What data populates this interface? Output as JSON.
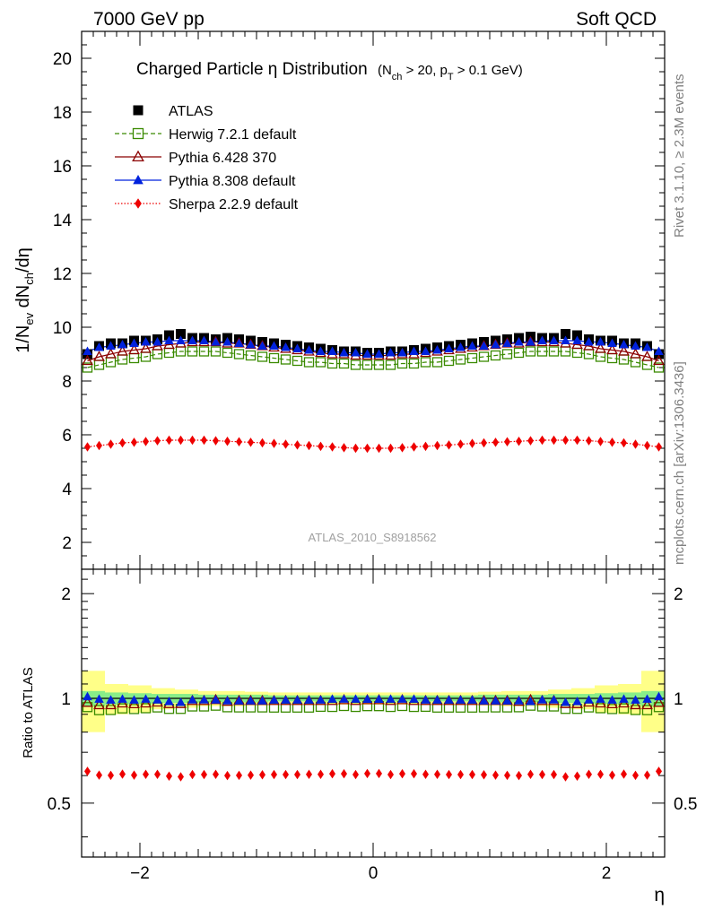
{
  "header": {
    "left": "7000 GeV pp",
    "right": "Soft QCD"
  },
  "side_labels": {
    "rivet": "Rivet 3.1.10, ≥ 2.3M events",
    "mcplots": "mcplots.cern.ch [arXiv:1306.3436]"
  },
  "analysis_id": "ATLAS_2010_S8918562",
  "chart_data": [
    {
      "type": "scatter",
      "panel": "main",
      "title": "Charged Particle η Distribution",
      "title_suffix_a": "(N",
      "title_suffix_sub1": "ch",
      "title_suffix_b": " > 20, p",
      "title_suffix_sub2": "T",
      "title_suffix_c": " > 0.1 GeV)",
      "ylabel": "1/N_ev dN_ch/dη",
      "xlabel": "η",
      "xlim": [
        -2.5,
        2.5
      ],
      "ylim": [
        1,
        21
      ],
      "yticks": [
        2,
        4,
        6,
        8,
        10,
        12,
        14,
        16,
        18,
        20
      ],
      "xticks": [
        -2,
        0,
        2
      ],
      "legend_position": "top-left",
      "x": [
        -2.45,
        -2.35,
        -2.25,
        -2.15,
        -2.05,
        -1.95,
        -1.85,
        -1.75,
        -1.65,
        -1.55,
        -1.45,
        -1.35,
        -1.25,
        -1.15,
        -1.05,
        -0.95,
        -0.85,
        -0.75,
        -0.65,
        -0.55,
        -0.45,
        -0.35,
        -0.25,
        -0.15,
        -0.05,
        0.05,
        0.15,
        0.25,
        0.35,
        0.45,
        0.55,
        0.65,
        0.75,
        0.85,
        0.95,
        1.05,
        1.15,
        1.25,
        1.35,
        1.45,
        1.55,
        1.65,
        1.75,
        1.85,
        1.95,
        2.05,
        2.15,
        2.25,
        2.35,
        2.45
      ],
      "series": [
        {
          "name": "ATLAS",
          "color": "#000000",
          "marker": "filled-square",
          "values": [
            9.0,
            9.3,
            9.4,
            9.4,
            9.5,
            9.5,
            9.55,
            9.7,
            9.75,
            9.6,
            9.6,
            9.55,
            9.6,
            9.55,
            9.5,
            9.45,
            9.4,
            9.35,
            9.3,
            9.25,
            9.2,
            9.15,
            9.1,
            9.1,
            9.05,
            9.05,
            9.1,
            9.1,
            9.15,
            9.2,
            9.25,
            9.3,
            9.35,
            9.4,
            9.45,
            9.5,
            9.55,
            9.6,
            9.65,
            9.6,
            9.6,
            9.75,
            9.7,
            9.55,
            9.5,
            9.5,
            9.4,
            9.4,
            9.3,
            9.0
          ]
        },
        {
          "name": "Herwig 7.2.1 default",
          "color": "#3a8a00",
          "marker": "open-square",
          "line": "dashed",
          "values": [
            8.5,
            8.6,
            8.7,
            8.8,
            8.85,
            8.9,
            9.0,
            9.05,
            9.1,
            9.1,
            9.1,
            9.1,
            9.05,
            9.0,
            8.95,
            8.9,
            8.85,
            8.8,
            8.75,
            8.7,
            8.7,
            8.65,
            8.65,
            8.6,
            8.6,
            8.6,
            8.6,
            8.65,
            8.65,
            8.7,
            8.7,
            8.75,
            8.8,
            8.85,
            8.9,
            8.95,
            9.0,
            9.05,
            9.1,
            9.1,
            9.1,
            9.1,
            9.05,
            9.0,
            8.9,
            8.85,
            8.8,
            8.7,
            8.6,
            8.5
          ]
        },
        {
          "name": "Pythia 6.428 370",
          "color": "#8b0000",
          "marker": "open-triangle",
          "line": "solid",
          "values": [
            8.75,
            8.9,
            9.0,
            9.1,
            9.15,
            9.2,
            9.3,
            9.35,
            9.4,
            9.45,
            9.45,
            9.45,
            9.4,
            9.4,
            9.35,
            9.3,
            9.25,
            9.2,
            9.15,
            9.1,
            9.05,
            9.0,
            9.0,
            8.95,
            8.95,
            8.95,
            8.95,
            9.0,
            9.0,
            9.05,
            9.1,
            9.15,
            9.2,
            9.25,
            9.3,
            9.35,
            9.4,
            9.4,
            9.45,
            9.45,
            9.45,
            9.4,
            9.35,
            9.3,
            9.2,
            9.15,
            9.1,
            9.0,
            8.9,
            8.75
          ]
        },
        {
          "name": "Pythia 8.308 default",
          "color": "#0022dd",
          "marker": "filled-triangle",
          "line": "solid",
          "values": [
            9.1,
            9.25,
            9.3,
            9.35,
            9.4,
            9.45,
            9.45,
            9.5,
            9.5,
            9.5,
            9.5,
            9.45,
            9.45,
            9.4,
            9.35,
            9.3,
            9.3,
            9.25,
            9.2,
            9.15,
            9.1,
            9.1,
            9.05,
            9.05,
            9.0,
            9.0,
            9.05,
            9.05,
            9.1,
            9.1,
            9.15,
            9.2,
            9.25,
            9.3,
            9.3,
            9.35,
            9.4,
            9.45,
            9.45,
            9.5,
            9.5,
            9.5,
            9.5,
            9.45,
            9.45,
            9.4,
            9.35,
            9.3,
            9.25,
            9.1
          ]
        },
        {
          "name": "Sherpa 2.2.9 default",
          "color": "#ee0000",
          "marker": "filled-diamond",
          "line": "dotted",
          "values": [
            5.55,
            5.6,
            5.65,
            5.7,
            5.72,
            5.75,
            5.78,
            5.8,
            5.8,
            5.8,
            5.8,
            5.78,
            5.76,
            5.74,
            5.72,
            5.7,
            5.68,
            5.65,
            5.62,
            5.6,
            5.57,
            5.55,
            5.52,
            5.5,
            5.5,
            5.5,
            5.5,
            5.52,
            5.55,
            5.57,
            5.6,
            5.62,
            5.65,
            5.68,
            5.7,
            5.72,
            5.74,
            5.76,
            5.78,
            5.8,
            5.8,
            5.8,
            5.8,
            5.78,
            5.75,
            5.72,
            5.7,
            5.65,
            5.6,
            5.55
          ]
        }
      ]
    },
    {
      "type": "scatter",
      "panel": "ratio",
      "ylabel": "Ratio to ATLAS",
      "xlabel": "η",
      "xlim": [
        -2.5,
        2.5
      ],
      "ylim": [
        0.35,
        2.35
      ],
      "yscale": "log",
      "yticks": [
        0.5,
        1,
        2
      ],
      "xticks": [
        -2,
        0,
        2
      ],
      "reference_band": {
        "inner_color": "#88ee88",
        "outer_color": "#ffff88",
        "x_edges": [
          -2.5,
          -2.3,
          -2.1,
          -1.9,
          -1.7,
          -1.5,
          -1.3,
          -1.1,
          -0.9,
          -0.7,
          -0.5,
          -0.3,
          -0.1,
          0.1,
          0.3,
          0.5,
          0.7,
          0.9,
          1.1,
          1.3,
          1.5,
          1.7,
          1.9,
          2.1,
          2.3,
          2.5
        ],
        "inner_halfwidth": [
          0.05,
          0.04,
          0.035,
          0.03,
          0.03,
          0.025,
          0.025,
          0.025,
          0.02,
          0.02,
          0.02,
          0.02,
          0.02,
          0.02,
          0.02,
          0.02,
          0.02,
          0.025,
          0.025,
          0.025,
          0.03,
          0.03,
          0.035,
          0.04,
          0.05
        ],
        "outer_halfwidth": [
          0.2,
          0.1,
          0.09,
          0.07,
          0.06,
          0.05,
          0.05,
          0.045,
          0.04,
          0.04,
          0.04,
          0.04,
          0.04,
          0.04,
          0.04,
          0.04,
          0.04,
          0.045,
          0.05,
          0.05,
          0.06,
          0.07,
          0.09,
          0.1,
          0.2
        ]
      },
      "series": [
        {
          "name": "Herwig 7.2.1 default",
          "color": "#3a8a00",
          "marker": "open-square",
          "values": [
            0.944,
            0.925,
            0.926,
            0.936,
            0.932,
            0.937,
            0.942,
            0.933,
            0.933,
            0.948,
            0.948,
            0.953,
            0.943,
            0.942,
            0.942,
            0.942,
            0.941,
            0.941,
            0.941,
            0.941,
            0.946,
            0.945,
            0.951,
            0.945,
            0.95,
            0.95,
            0.945,
            0.951,
            0.945,
            0.946,
            0.941,
            0.941,
            0.941,
            0.941,
            0.942,
            0.942,
            0.942,
            0.943,
            0.953,
            0.948,
            0.948,
            0.933,
            0.933,
            0.942,
            0.937,
            0.932,
            0.936,
            0.926,
            0.925,
            0.944
          ]
        },
        {
          "name": "Pythia 6.428 370",
          "color": "#8b0000",
          "marker": "open-triangle",
          "values": [
            0.972,
            0.957,
            0.957,
            0.968,
            0.963,
            0.968,
            0.974,
            0.964,
            0.964,
            0.984,
            0.984,
            0.99,
            0.979,
            0.984,
            0.984,
            0.984,
            0.984,
            0.984,
            0.984,
            0.984,
            0.984,
            0.984,
            0.989,
            0.984,
            0.989,
            0.989,
            0.984,
            0.989,
            0.984,
            0.984,
            0.984,
            0.984,
            0.984,
            0.984,
            0.984,
            0.984,
            0.984,
            0.979,
            0.99,
            0.984,
            0.984,
            0.964,
            0.964,
            0.974,
            0.968,
            0.963,
            0.968,
            0.957,
            0.957,
            0.972
          ]
        },
        {
          "name": "Pythia 8.308 default",
          "color": "#0022dd",
          "marker": "filled-triangle",
          "values": [
            1.011,
            0.995,
            0.989,
            0.995,
            0.989,
            0.995,
            0.99,
            0.979,
            0.974,
            0.99,
            0.99,
            0.99,
            0.984,
            0.984,
            0.984,
            0.984,
            0.989,
            0.989,
            0.989,
            0.989,
            0.989,
            0.995,
            0.995,
            0.995,
            0.994,
            0.994,
            0.995,
            0.995,
            0.995,
            0.989,
            0.989,
            0.989,
            0.989,
            0.989,
            0.984,
            0.984,
            0.984,
            0.984,
            0.979,
            0.99,
            0.99,
            0.974,
            0.979,
            0.99,
            0.995,
            0.989,
            0.995,
            0.989,
            0.995,
            1.011
          ]
        },
        {
          "name": "Sherpa 2.2.9 default",
          "color": "#ee0000",
          "marker": "filled-diamond",
          "values": [
            0.617,
            0.602,
            0.601,
            0.606,
            0.602,
            0.605,
            0.605,
            0.598,
            0.595,
            0.604,
            0.604,
            0.605,
            0.6,
            0.601,
            0.602,
            0.603,
            0.604,
            0.604,
            0.604,
            0.605,
            0.605,
            0.607,
            0.607,
            0.604,
            0.608,
            0.608,
            0.604,
            0.607,
            0.607,
            0.605,
            0.605,
            0.604,
            0.604,
            0.604,
            0.603,
            0.602,
            0.601,
            0.6,
            0.605,
            0.604,
            0.604,
            0.595,
            0.598,
            0.605,
            0.605,
            0.602,
            0.606,
            0.601,
            0.602,
            0.617
          ]
        }
      ]
    }
  ]
}
